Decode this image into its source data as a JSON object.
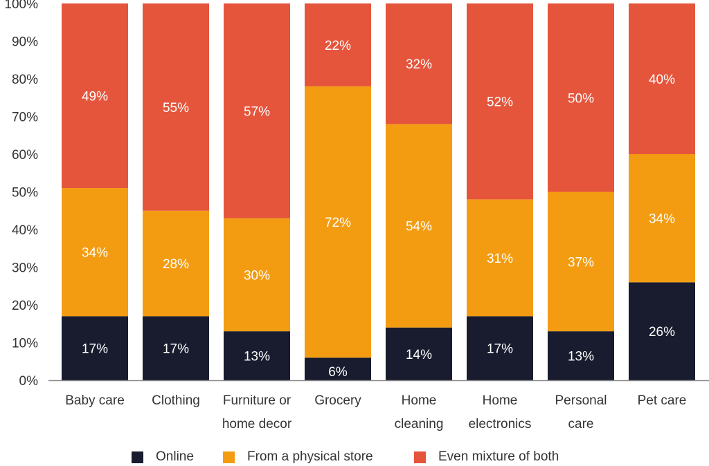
{
  "chart_data": {
    "type": "bar",
    "stacked": true,
    "title": "",
    "xlabel": "",
    "ylabel": "",
    "ylim": [
      0,
      100
    ],
    "yticks": [
      "0%",
      "10%",
      "20%",
      "30%",
      "40%",
      "50%",
      "60%",
      "70%",
      "80%",
      "90%",
      "100%"
    ],
    "grid": false,
    "legend_position": "bottom-center",
    "categories": [
      [
        "Baby care"
      ],
      [
        "Clothing"
      ],
      [
        "Furniture or",
        "home decor"
      ],
      [
        "Grocery"
      ],
      [
        "Home",
        "cleaning"
      ],
      [
        "Home",
        "electronics"
      ],
      [
        "Personal",
        "care"
      ],
      [
        "Pet care"
      ]
    ],
    "series": [
      {
        "name": "Online",
        "color": "#181c2e",
        "values": [
          17,
          17,
          13,
          6,
          14,
          17,
          13,
          26
        ]
      },
      {
        "name": "From a physical store",
        "color": "#f39c12",
        "values": [
          34,
          28,
          30,
          72,
          54,
          31,
          37,
          34
        ]
      },
      {
        "name": "Even mixture of both",
        "color": "#e5553c",
        "values": [
          49,
          55,
          57,
          22,
          32,
          52,
          50,
          40
        ]
      }
    ],
    "data_labels": {
      "suffix": "%",
      "color": "#ffffff"
    }
  },
  "legend": {
    "items": [
      {
        "label": "Online",
        "color": "#181c2e"
      },
      {
        "label": "From a physical store",
        "color": "#f39c12"
      },
      {
        "label": "Even mixture of both",
        "color": "#e5553c"
      }
    ]
  }
}
